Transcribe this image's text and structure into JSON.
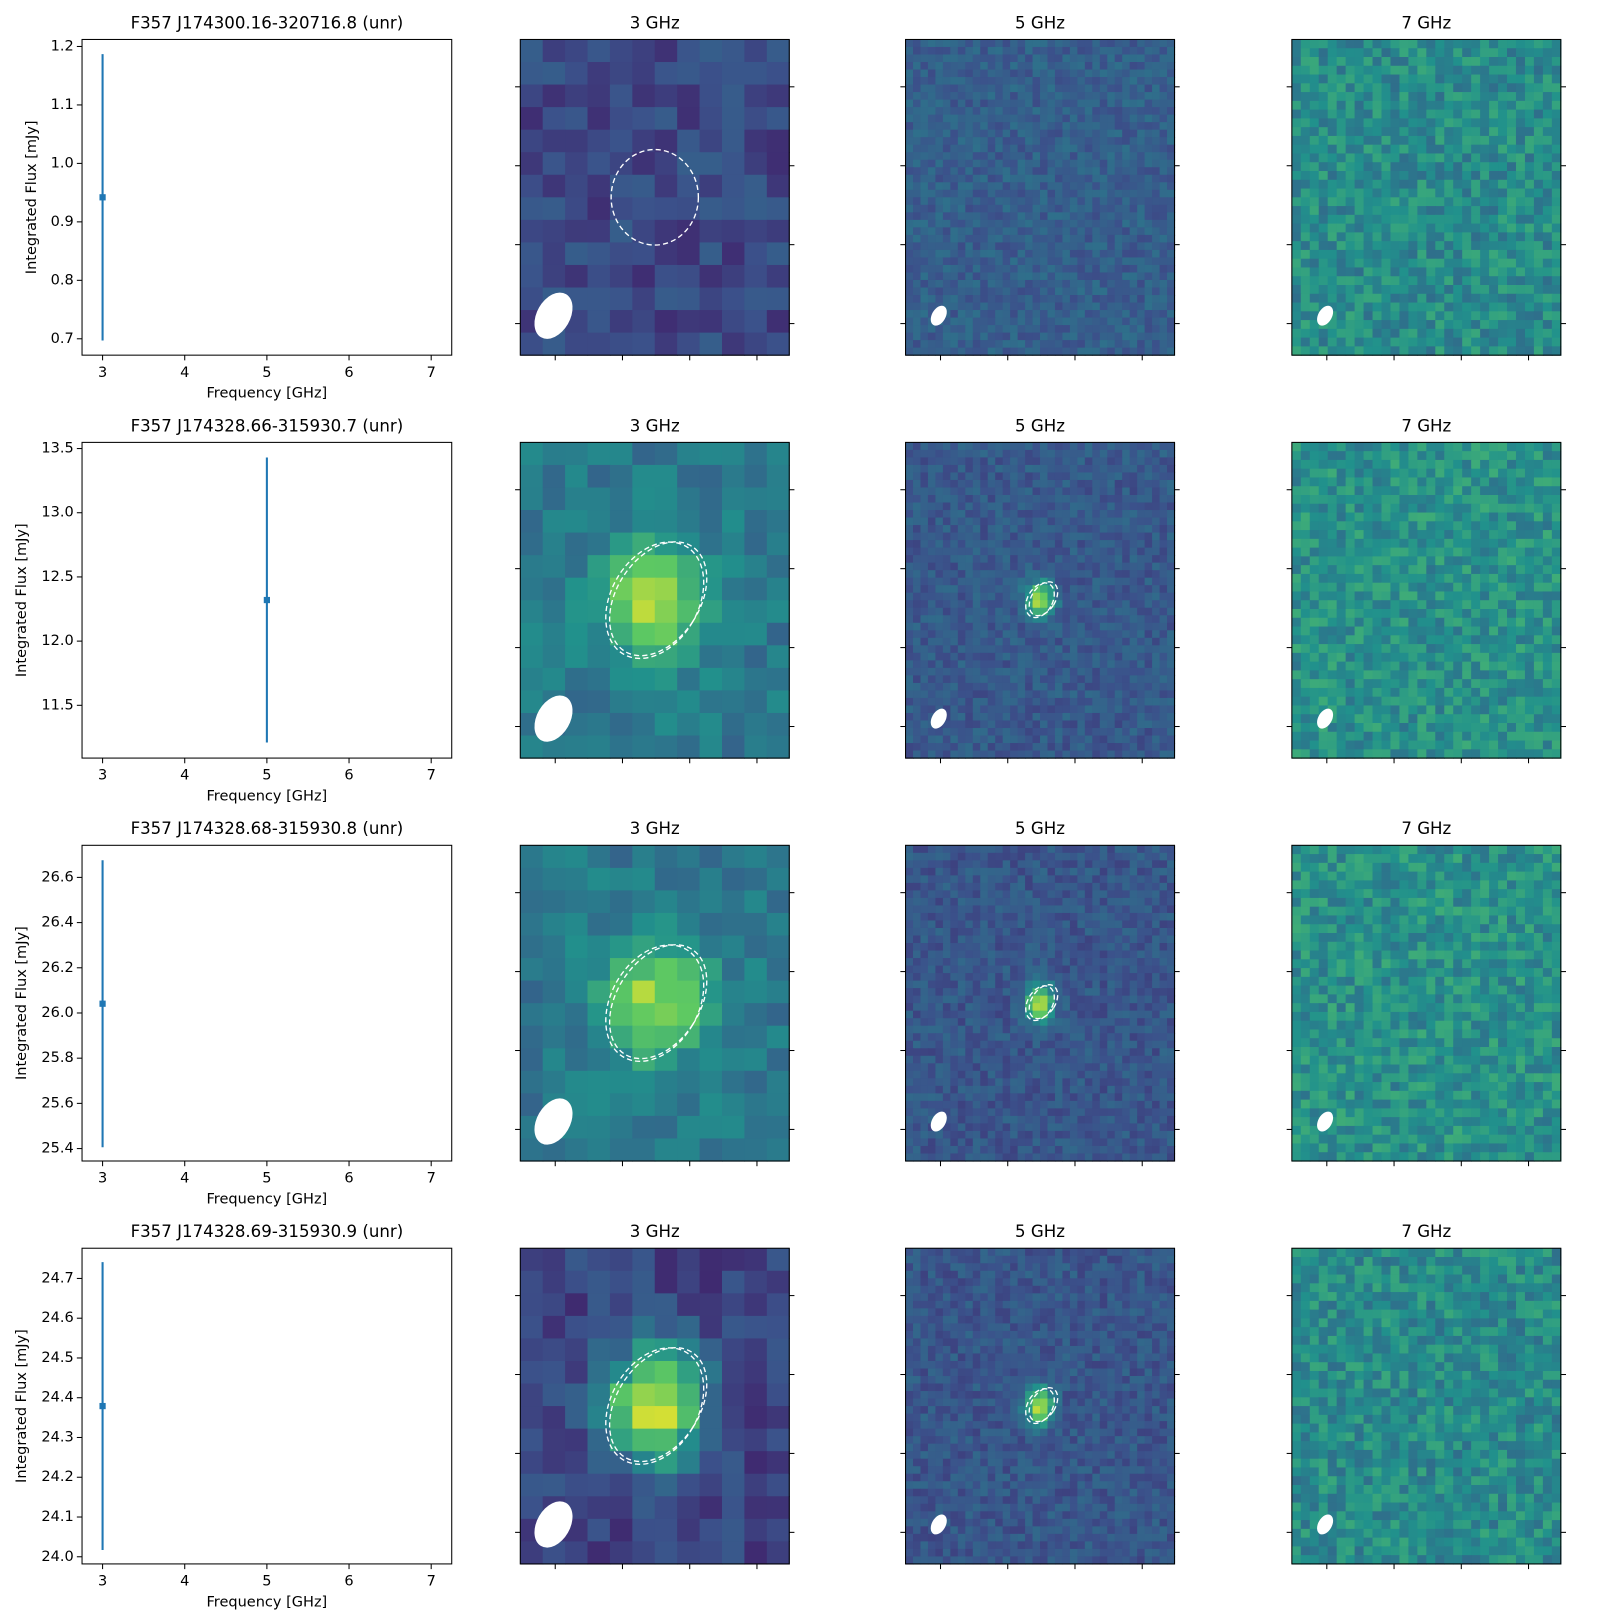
{
  "chart_data": [
    {
      "type": "errorbar",
      "title": "F357 J174300.16-320716.8 (unr)",
      "xlabel": "Frequency [GHz]",
      "ylabel": "Integrated Flux [mJy]",
      "x": [
        3
      ],
      "values": [
        0.942
      ],
      "errors": [
        0.245
      ],
      "color": "#1f77b4",
      "xlim": [
        2.75,
        7.25
      ],
      "xticks": [
        3,
        4,
        5,
        6,
        7
      ],
      "ylim": [
        0.672,
        1.212
      ],
      "yticks": [
        {
          "value": 0.7,
          "label": "0.7"
        },
        {
          "value": 0.8,
          "label": "0.8"
        },
        {
          "value": 0.9,
          "label": "0.9"
        },
        {
          "value": 1.0,
          "label": "1.0"
        },
        {
          "value": 1.1,
          "label": "1.1"
        },
        {
          "value": 1.2,
          "label": "1.2"
        }
      ]
    },
    {
      "type": "errorbar",
      "title": "F357 J174328.66-315930.7 (unr)",
      "xlabel": "Frequency [GHz]",
      "ylabel": "Integrated Flux [mJy]",
      "x": [
        5
      ],
      "values": [
        12.32
      ],
      "errors": [
        1.11
      ],
      "color": "#1f77b4",
      "xlim": [
        2.75,
        7.25
      ],
      "xticks": [
        3,
        4,
        5,
        6,
        7
      ],
      "ylim": [
        11.089,
        13.548
      ],
      "yticks": [
        11.5,
        {
          "value": 12,
          "label": "12.0"
        },
        12.5,
        {
          "value": 13,
          "label": "13.0"
        },
        13.5
      ]
    },
    {
      "type": "errorbar",
      "title": "F357 J174328.68-315930.8 (unr)",
      "xlabel": "Frequency [GHz]",
      "ylabel": "Integrated Flux [mJy]",
      "x": [
        3
      ],
      "values": [
        26.041
      ],
      "errors": [
        0.635
      ],
      "color": "#1f77b4",
      "xlim": [
        2.75,
        7.25
      ],
      "xticks": [
        3,
        4,
        5,
        6,
        7
      ],
      "ylim": [
        25.345,
        26.742
      ],
      "yticks": [
        25.4,
        25.6,
        25.8,
        {
          "value": 26,
          "label": "26.0"
        },
        26.2,
        26.4,
        26.6
      ]
    },
    {
      "type": "errorbar",
      "title": "F357 J174328.69-315930.9 (unr)",
      "xlabel": "Frequency [GHz]",
      "ylabel": "Integrated Flux [mJy]",
      "x": [
        3
      ],
      "values": [
        24.379
      ],
      "errors": [
        0.362
      ],
      "color": "#1f77b4",
      "xlim": [
        2.75,
        7.25
      ],
      "xticks": [
        3,
        4,
        5,
        6,
        7
      ],
      "ylim": [
        23.982,
        24.776
      ],
      "yticks": [
        {
          "value": 24,
          "label": "24.0"
        },
        24.1,
        24.2,
        24.3,
        24.4,
        24.5,
        24.6,
        24.7
      ]
    }
  ],
  "image_panels": [
    [
      "3 GHz",
      "5 GHz",
      "7 GHz"
    ],
    [
      "3 GHz",
      "5 GHz",
      "7 GHz"
    ],
    [
      "3 GHz",
      "5 GHz",
      "7 GHz"
    ],
    [
      "3 GHz",
      "5 GHz",
      "7 GHz"
    ]
  ]
}
